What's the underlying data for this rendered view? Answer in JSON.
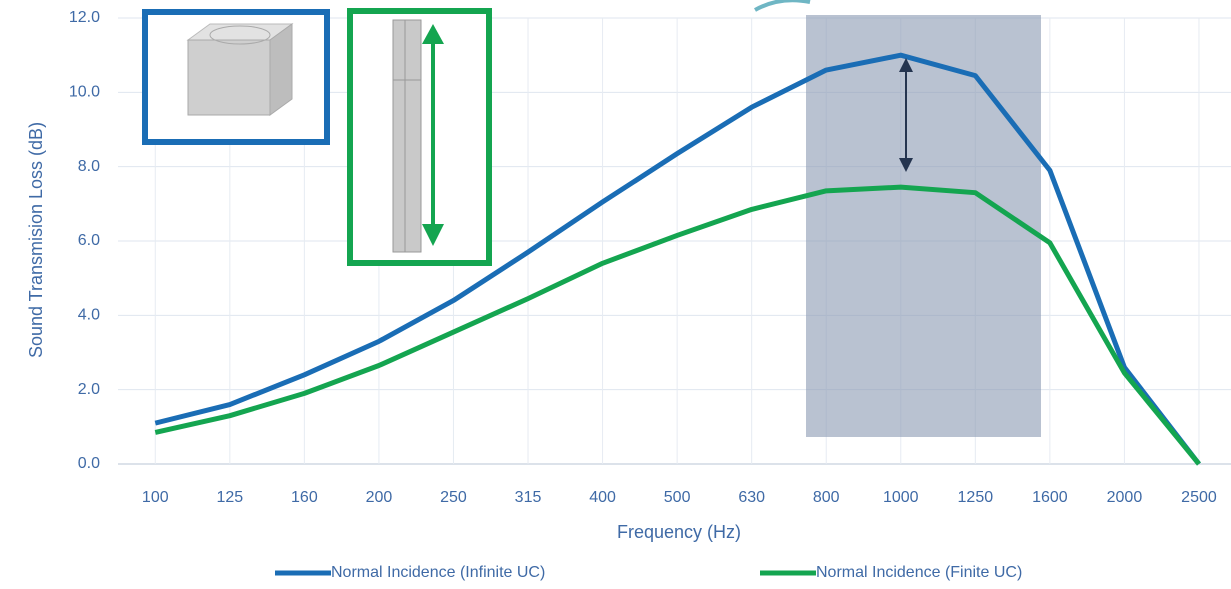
{
  "chart_data": {
    "type": "line",
    "x_label": "Frequency (Hz)",
    "y_label": "Sound Transmision Loss (dB)",
    "categories": [
      "100",
      "125",
      "160",
      "200",
      "250",
      "315",
      "400",
      "500",
      "630",
      "800",
      "1000",
      "1250",
      "1600",
      "2000",
      "2500"
    ],
    "series": [
      {
        "name": "Normal Incidence (Infinite UC)",
        "color": "#1a6db5",
        "values": [
          1.1,
          1.6,
          2.4,
          3.3,
          4.4,
          5.7,
          7.05,
          8.35,
          9.6,
          10.6,
          11.0,
          10.45,
          7.9,
          2.6,
          0.0
        ]
      },
      {
        "name": "Normal Incidence (Finite UC)",
        "color": "#14a550",
        "values": [
          0.85,
          1.3,
          1.9,
          2.65,
          3.55,
          4.45,
          5.4,
          6.15,
          6.85,
          7.35,
          7.45,
          7.3,
          5.95,
          2.45,
          0.0
        ]
      }
    ],
    "ylim": [
      0,
      12
    ],
    "yticks": [
      {
        "value": 0,
        "label": "0.0"
      },
      {
        "value": 2,
        "label": "2.0"
      },
      {
        "value": 4,
        "label": "4.0"
      },
      {
        "value": 6,
        "label": "6.0"
      },
      {
        "value": 8,
        "label": "8.0"
      },
      {
        "value": 10,
        "label": "10.0"
      },
      {
        "value": 12,
        "label": "12.0"
      }
    ],
    "grid": true,
    "legend": "bottom"
  }
}
